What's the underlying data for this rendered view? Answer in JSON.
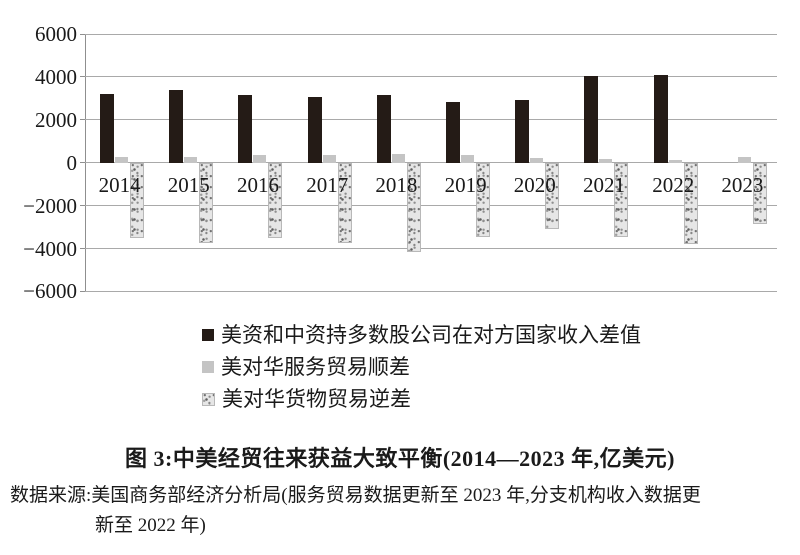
{
  "figure": {
    "caption": "图 3:中美经贸往来获益大致平衡(2014—2023 年,亿美元)",
    "source_line1": "数据来源:美国商务部经济分析局(服务贸易数据更新至 2023 年,分支机构收入数据更",
    "source_line2": "新至 2022 年)"
  },
  "chart_data": {
    "type": "bar",
    "title": "图 3:中美经贸往来获益大致平衡(2014—2023 年,亿美元)",
    "unit": "亿美元",
    "categories": [
      "2014",
      "2015",
      "2016",
      "2017",
      "2018",
      "2019",
      "2020",
      "2021",
      "2022",
      "2023"
    ],
    "series": [
      {
        "key": "income-diff",
        "name": "美资和中资持多数股公司在对方国家收入差值",
        "style": "solid-black",
        "color": "#241b16",
        "values": [
          3200,
          3370,
          3150,
          3050,
          3150,
          2850,
          2900,
          4050,
          4100,
          null
        ]
      },
      {
        "key": "services-surplus",
        "name": "美对华服务贸易顺差",
        "style": "solid-gray",
        "color": "#c4c4c4",
        "values": [
          250,
          280,
          380,
          380,
          400,
          370,
          230,
          150,
          120,
          280
        ]
      },
      {
        "key": "goods-deficit",
        "name": "美对华货物贸易逆差",
        "style": "speckled",
        "color": "#e6e6e6",
        "values": [
          -3500,
          -3750,
          -3500,
          -3750,
          -4150,
          -3450,
          -3100,
          -3450,
          -3800,
          -2850
        ]
      }
    ],
    "ylim": [
      -6000,
      6000
    ],
    "ytick_interval": 2000,
    "ytick_labels": [
      "6000",
      "4000",
      "2000",
      "0",
      "−2000",
      "−4000",
      "−6000"
    ],
    "grid": true,
    "legend_position": "below-left",
    "gridline_color": "#a9a9a9"
  }
}
